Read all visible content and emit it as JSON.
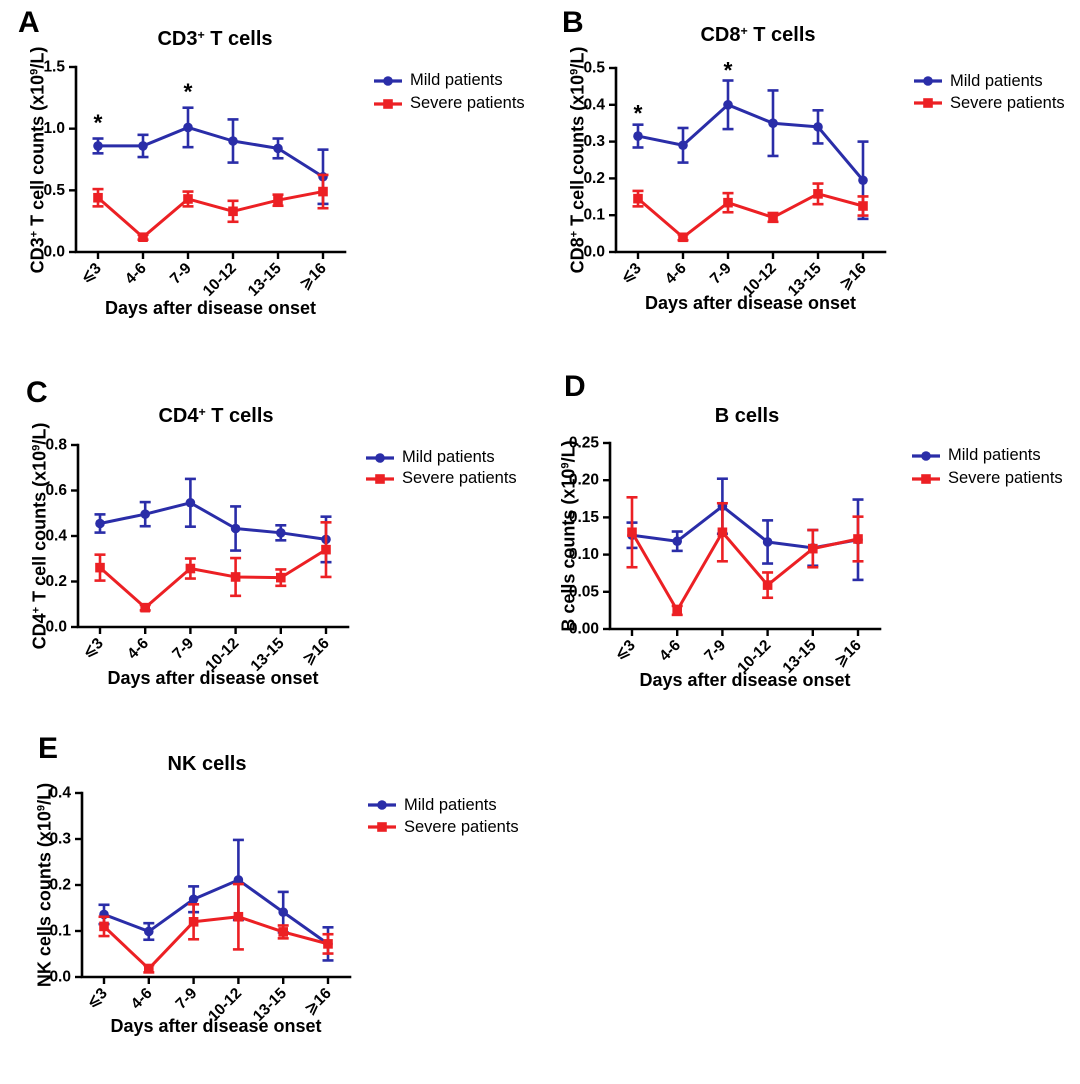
{
  "shared": {
    "xlabel": "Days after disease onset",
    "x_categories": [
      "⩽3",
      "4-6",
      "7-9",
      "10-12",
      "13-15",
      "⩾16"
    ],
    "legend": [
      {
        "label": "Mild patients",
        "color": "#2A2DA8",
        "marker": "circle"
      },
      {
        "label": "Severe patients",
        "color": "#EC2024",
        "marker": "square"
      }
    ],
    "colors": {
      "axis": "#000000",
      "text": "#000000",
      "background": "#ffffff"
    }
  },
  "chart_data": [
    {
      "type": "line",
      "panel": "A",
      "title": "CD3+ T cells",
      "title_parts": [
        {
          "t": "CD3"
        },
        {
          "t": "+",
          "sup": true
        },
        {
          "t": " T cells"
        }
      ],
      "ylabel": "CD3+ T cell counts (x10^9/L)",
      "ylabel_parts": [
        {
          "t": "CD3"
        },
        {
          "t": "+",
          "sup": true
        },
        {
          "t": " T cell counts (x10"
        },
        {
          "t": "9",
          "sup": true
        },
        {
          "t": "/L)"
        }
      ],
      "xlabel": "Days after disease onset",
      "ylim": [
        0,
        1.5
      ],
      "ytick_vals": [
        0,
        0.5,
        1.0,
        1.5
      ],
      "ytick_labels": [
        "0.0",
        "0.5",
        "1.0",
        "1.5"
      ],
      "grid": false,
      "legend_position": "right-top",
      "series": [
        {
          "name": "Mild patients",
          "values": [
            0.86,
            0.86,
            1.01,
            0.9,
            0.84,
            0.61
          ],
          "err": [
            0.06,
            0.09,
            0.16,
            0.175,
            0.08,
            0.22
          ]
        },
        {
          "name": "Severe patients",
          "values": [
            0.44,
            0.12,
            0.43,
            0.33,
            0.42,
            0.49
          ],
          "err": [
            0.07,
            0.02,
            0.06,
            0.085,
            0.045,
            0.135
          ]
        }
      ],
      "annotations": [
        {
          "x_index": 0,
          "y": 1.05,
          "text": "*"
        },
        {
          "x_index": 2,
          "y": 1.3,
          "text": "*"
        }
      ]
    },
    {
      "type": "line",
      "panel": "B",
      "title": "CD8+ T cells",
      "title_parts": [
        {
          "t": "CD8"
        },
        {
          "t": "+",
          "sup": true
        },
        {
          "t": " T cells"
        }
      ],
      "ylabel": "CD8+ T cell counts (x10^9/L)",
      "ylabel_parts": [
        {
          "t": "CD8"
        },
        {
          "t": "+",
          "sup": true
        },
        {
          "t": " T cell counts (x10"
        },
        {
          "t": "9",
          "sup": true
        },
        {
          "t": "/L)"
        }
      ],
      "xlabel": "Days after disease onset",
      "ylim": [
        0,
        0.5
      ],
      "ytick_vals": [
        0,
        0.1,
        0.2,
        0.3,
        0.4,
        0.5
      ],
      "ytick_labels": [
        "0.0",
        "0.1",
        "0.2",
        "0.3",
        "0.4",
        "0.5"
      ],
      "grid": false,
      "legend_position": "right-top",
      "series": [
        {
          "name": "Mild patients",
          "values": [
            0.315,
            0.29,
            0.4,
            0.35,
            0.34,
            0.195
          ],
          "err": [
            0.031,
            0.047,
            0.066,
            0.089,
            0.045,
            0.105
          ]
        },
        {
          "name": "Severe patients",
          "values": [
            0.145,
            0.04,
            0.134,
            0.094,
            0.158,
            0.125
          ],
          "err": [
            0.021,
            0.008,
            0.026,
            0.012,
            0.028,
            0.026
          ]
        }
      ],
      "annotations": [
        {
          "x_index": 0,
          "y": 0.378,
          "text": "*"
        },
        {
          "x_index": 2,
          "y": 0.495,
          "text": "*"
        }
      ]
    },
    {
      "type": "line",
      "panel": "C",
      "title": "CD4+ T cells",
      "title_parts": [
        {
          "t": "CD4"
        },
        {
          "t": "+",
          "sup": true
        },
        {
          "t": " T cells"
        }
      ],
      "ylabel": "CD4+ T cell counts (x10^9/L)",
      "ylabel_parts": [
        {
          "t": "CD4"
        },
        {
          "t": "+",
          "sup": true
        },
        {
          "t": " T cell counts (x10"
        },
        {
          "t": "9",
          "sup": true
        },
        {
          "t": "/L)"
        }
      ],
      "xlabel": "Days after disease onset",
      "ylim": [
        0,
        0.8
      ],
      "ytick_vals": [
        0,
        0.2,
        0.4,
        0.6,
        0.8
      ],
      "ytick_labels": [
        "0.0",
        "0.2",
        "0.4",
        "0.6",
        "0.8"
      ],
      "grid": false,
      "legend_position": "right-top",
      "series": [
        {
          "name": "Mild patients",
          "values": [
            0.455,
            0.496,
            0.546,
            0.433,
            0.414,
            0.385
          ],
          "err": [
            0.04,
            0.053,
            0.105,
            0.097,
            0.033,
            0.1
          ]
        },
        {
          "name": "Severe patients",
          "values": [
            0.261,
            0.085,
            0.257,
            0.22,
            0.217,
            0.34
          ],
          "err": [
            0.057,
            0.012,
            0.044,
            0.083,
            0.036,
            0.12
          ]
        }
      ],
      "annotations": []
    },
    {
      "type": "line",
      "panel": "D",
      "title": "B cells",
      "title_parts": [
        {
          "t": "B cells"
        }
      ],
      "ylabel": "B cells counts (x10^9/L)",
      "ylabel_parts": [
        {
          "t": "B cells counts (x10"
        },
        {
          "t": "9",
          "sup": true
        },
        {
          "t": "/L)"
        }
      ],
      "xlabel": "Days after disease onset",
      "ylim": [
        0,
        0.25
      ],
      "ytick_vals": [
        0,
        0.05,
        0.1,
        0.15,
        0.2,
        0.25
      ],
      "ytick_labels": [
        "0.00",
        "0.05",
        "0.10",
        "0.15",
        "0.20",
        "0.25"
      ],
      "grid": false,
      "legend_position": "right-top",
      "series": [
        {
          "name": "Mild patients",
          "values": [
            0.126,
            0.118,
            0.165,
            0.117,
            0.109,
            0.12
          ],
          "err": [
            0.017,
            0.013,
            0.037,
            0.029,
            0.024,
            0.054
          ]
        },
        {
          "name": "Severe patients",
          "values": [
            0.13,
            0.025,
            0.13,
            0.059,
            0.108,
            0.121
          ],
          "err": [
            0.047,
            0.006,
            0.039,
            0.017,
            0.025,
            0.03
          ]
        }
      ],
      "annotations": []
    },
    {
      "type": "line",
      "panel": "E",
      "title": "NK cells",
      "title_parts": [
        {
          "t": "NK cells"
        }
      ],
      "ylabel": "NK cells counts (x10^9/L)",
      "ylabel_parts": [
        {
          "t": "NK cells counts (x10"
        },
        {
          "t": "9",
          "sup": true
        },
        {
          "t": "/L)"
        }
      ],
      "xlabel": "Days after disease onset",
      "ylim": [
        0,
        0.4
      ],
      "ytick_vals": [
        0,
        0.1,
        0.2,
        0.3,
        0.4
      ],
      "ytick_labels": [
        "0.0",
        "0.1",
        "0.2",
        "0.3",
        "0.4"
      ],
      "grid": false,
      "legend_position": "right-top",
      "series": [
        {
          "name": "Mild patients",
          "values": [
            0.136,
            0.099,
            0.169,
            0.211,
            0.141,
            0.072
          ],
          "err": [
            0.021,
            0.018,
            0.028,
            0.087,
            0.044,
            0.036
          ]
        },
        {
          "name": "Severe patients",
          "values": [
            0.11,
            0.018,
            0.12,
            0.131,
            0.098,
            0.072
          ],
          "err": [
            0.021,
            0.008,
            0.038,
            0.071,
            0.014,
            0.021
          ]
        }
      ],
      "annotations": []
    }
  ]
}
